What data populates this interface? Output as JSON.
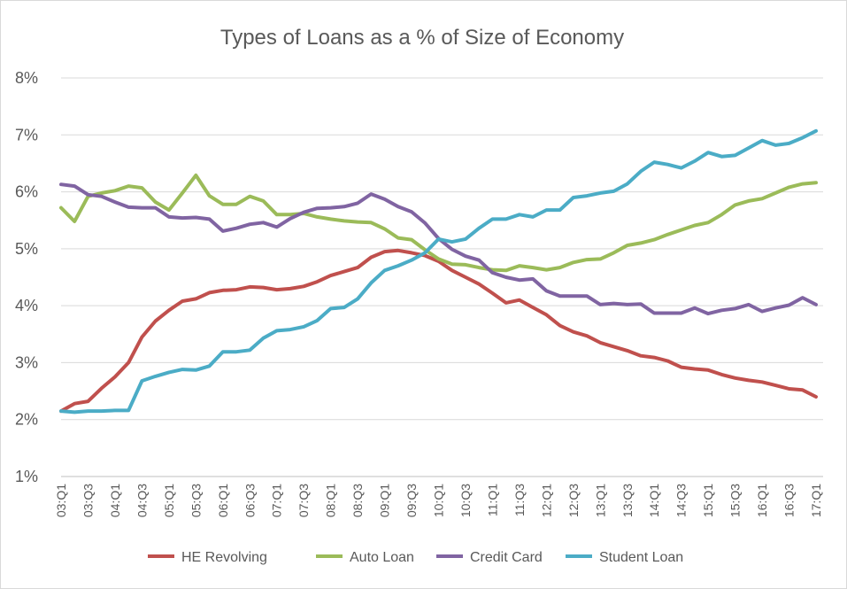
{
  "chart_data": {
    "type": "line",
    "title": "Types of Loans as a % of Size of Economy",
    "xlabel": "",
    "ylabel": "",
    "ylim": [
      1,
      8
    ],
    "yticks": [
      "1%",
      "2%",
      "3%",
      "4%",
      "5%",
      "6%",
      "7%",
      "8%"
    ],
    "grid": true,
    "legend_position": "bottom",
    "x": [
      "03:Q1",
      "03:Q2",
      "03:Q3",
      "03:Q4",
      "04:Q1",
      "04:Q2",
      "04:Q3",
      "04:Q4",
      "05:Q1",
      "05:Q2",
      "05:Q3",
      "05:Q4",
      "06:Q1",
      "06:Q2",
      "06:Q3",
      "06:Q4",
      "07:Q1",
      "07:Q2",
      "07:Q3",
      "07:Q4",
      "08:Q1",
      "08:Q2",
      "08:Q3",
      "08:Q4",
      "09:Q1",
      "09:Q2",
      "09:Q3",
      "09:Q4",
      "10:Q1",
      "10:Q2",
      "10:Q3",
      "10:Q4",
      "11:Q1",
      "11:Q2",
      "11:Q3",
      "11:Q4",
      "12:Q1",
      "12:Q2",
      "12:Q3",
      "12:Q4",
      "13:Q1",
      "13:Q2",
      "13:Q3",
      "13:Q4",
      "14:Q1",
      "14:Q2",
      "14:Q3",
      "14:Q4",
      "15:Q1",
      "15:Q2",
      "15:Q3",
      "15:Q4",
      "16:Q1",
      "16:Q2",
      "16:Q3",
      "16:Q4",
      "17:Q1"
    ],
    "x_tick_labels": [
      "03:Q1",
      "03:Q3",
      "04:Q1",
      "04:Q3",
      "05:Q1",
      "05:Q3",
      "06:Q1",
      "06:Q3",
      "07:Q1",
      "07:Q3",
      "08:Q1",
      "08:Q3",
      "09:Q1",
      "09:Q3",
      "10:Q1",
      "10:Q3",
      "11:Q1",
      "11:Q3",
      "12:Q1",
      "12:Q3",
      "13:Q1",
      "13:Q3",
      "14:Q1",
      "14:Q3",
      "15:Q1",
      "15:Q3",
      "16:Q1",
      "16:Q3",
      "17:Q1"
    ],
    "series": [
      {
        "name": "HE Revolving",
        "color": "#c0504d",
        "values": [
          2.15,
          2.28,
          2.32,
          2.55,
          2.75,
          3.0,
          3.45,
          3.73,
          3.92,
          4.08,
          4.12,
          4.23,
          4.27,
          4.28,
          4.33,
          4.32,
          4.28,
          4.3,
          4.34,
          4.42,
          4.53,
          4.6,
          4.67,
          4.85,
          4.95,
          4.97,
          4.93,
          4.88,
          4.78,
          4.62,
          4.5,
          4.38,
          4.22,
          4.05,
          4.1,
          3.97,
          3.84,
          3.65,
          3.54,
          3.47,
          3.35,
          3.28,
          3.21,
          3.12,
          3.09,
          3.03,
          2.92,
          2.89,
          2.87,
          2.79,
          2.73,
          2.69,
          2.66,
          2.6,
          2.54,
          2.52,
          2.4
        ]
      },
      {
        "name": "Auto Loan",
        "color": "#9bbb59",
        "values": [
          5.72,
          5.48,
          5.92,
          5.98,
          6.02,
          6.1,
          6.07,
          5.82,
          5.68,
          5.98,
          6.29,
          5.93,
          5.78,
          5.78,
          5.92,
          5.84,
          5.6,
          5.6,
          5.62,
          5.56,
          5.52,
          5.49,
          5.47,
          5.46,
          5.35,
          5.19,
          5.16,
          4.98,
          4.82,
          4.73,
          4.72,
          4.67,
          4.63,
          4.62,
          4.7,
          4.67,
          4.63,
          4.67,
          4.76,
          4.81,
          4.82,
          4.93,
          5.06,
          5.1,
          5.16,
          5.25,
          5.33,
          5.41,
          5.46,
          5.6,
          5.77,
          5.84,
          5.88,
          5.98,
          6.08,
          6.14,
          6.16
        ]
      },
      {
        "name": "Credit Card",
        "color": "#8064a2",
        "values": [
          6.13,
          6.1,
          5.95,
          5.92,
          5.82,
          5.73,
          5.72,
          5.72,
          5.56,
          5.54,
          5.55,
          5.52,
          5.31,
          5.36,
          5.43,
          5.46,
          5.38,
          5.53,
          5.64,
          5.71,
          5.72,
          5.74,
          5.8,
          5.96,
          5.87,
          5.74,
          5.65,
          5.45,
          5.18,
          4.99,
          4.87,
          4.8,
          4.58,
          4.5,
          4.45,
          4.47,
          4.26,
          4.17,
          4.17,
          4.17,
          4.02,
          4.04,
          4.02,
          4.03,
          3.87,
          3.87,
          3.87,
          3.96,
          3.86,
          3.92,
          3.95,
          4.02,
          3.9,
          3.96,
          4.01,
          4.14,
          4.02
        ]
      },
      {
        "name": "Student Loan",
        "color": "#4bacc6",
        "values": [
          2.15,
          2.13,
          2.15,
          2.15,
          2.16,
          2.16,
          2.68,
          2.76,
          2.83,
          2.88,
          2.87,
          2.94,
          3.19,
          3.19,
          3.22,
          3.43,
          3.56,
          3.58,
          3.63,
          3.74,
          3.95,
          3.97,
          4.12,
          4.4,
          4.62,
          4.7,
          4.8,
          4.93,
          5.17,
          5.12,
          5.17,
          5.36,
          5.52,
          5.52,
          5.6,
          5.56,
          5.68,
          5.68,
          5.9,
          5.93,
          5.98,
          6.01,
          6.14,
          6.36,
          6.52,
          6.48,
          6.42,
          6.54,
          6.69,
          6.62,
          6.64,
          6.77,
          6.9,
          6.82,
          6.85,
          6.95,
          7.07
        ]
      }
    ]
  }
}
